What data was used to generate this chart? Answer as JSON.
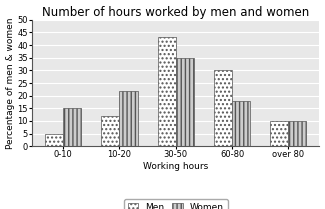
{
  "title": "Number of hours worked by men and women",
  "xlabel": "Working hours",
  "ylabel": "Percentage of men & women",
  "categories": [
    "0-10",
    "10-20",
    "30-50",
    "60-80",
    "over 80"
  ],
  "men_values": [
    5,
    12,
    43,
    30,
    10
  ],
  "women_values": [
    15,
    22,
    35,
    18,
    10
  ],
  "ylim": [
    0,
    50
  ],
  "yticks": [
    0,
    5,
    10,
    15,
    20,
    25,
    30,
    35,
    40,
    45,
    50
  ],
  "bar_width": 0.32,
  "men_hatch": "....",
  "women_hatch": "||||",
  "men_color": "white",
  "women_color": "#cccccc",
  "edge_color": "#555555",
  "background_color": "#e8e8e8",
  "grid_color": "#ffffff",
  "title_fontsize": 8.5,
  "axis_fontsize": 6.5,
  "tick_fontsize": 6,
  "legend_fontsize": 6.5
}
